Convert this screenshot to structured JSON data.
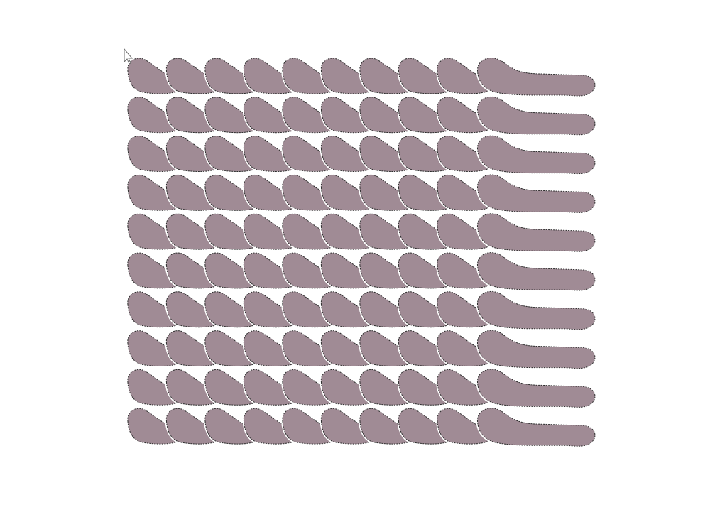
{
  "canvas": {
    "background": "#ffffff"
  },
  "pattern": {
    "shape": "teardrop-brush-stroke",
    "rows": 10,
    "columns": 9,
    "fill_color": "#a08b95",
    "outline_color": "#2b2b2b",
    "halo_color": "#ffffff",
    "last_column_shape": "elongated-wave-stroke"
  },
  "cursor": {
    "icon": "arrow-cursor-icon"
  }
}
